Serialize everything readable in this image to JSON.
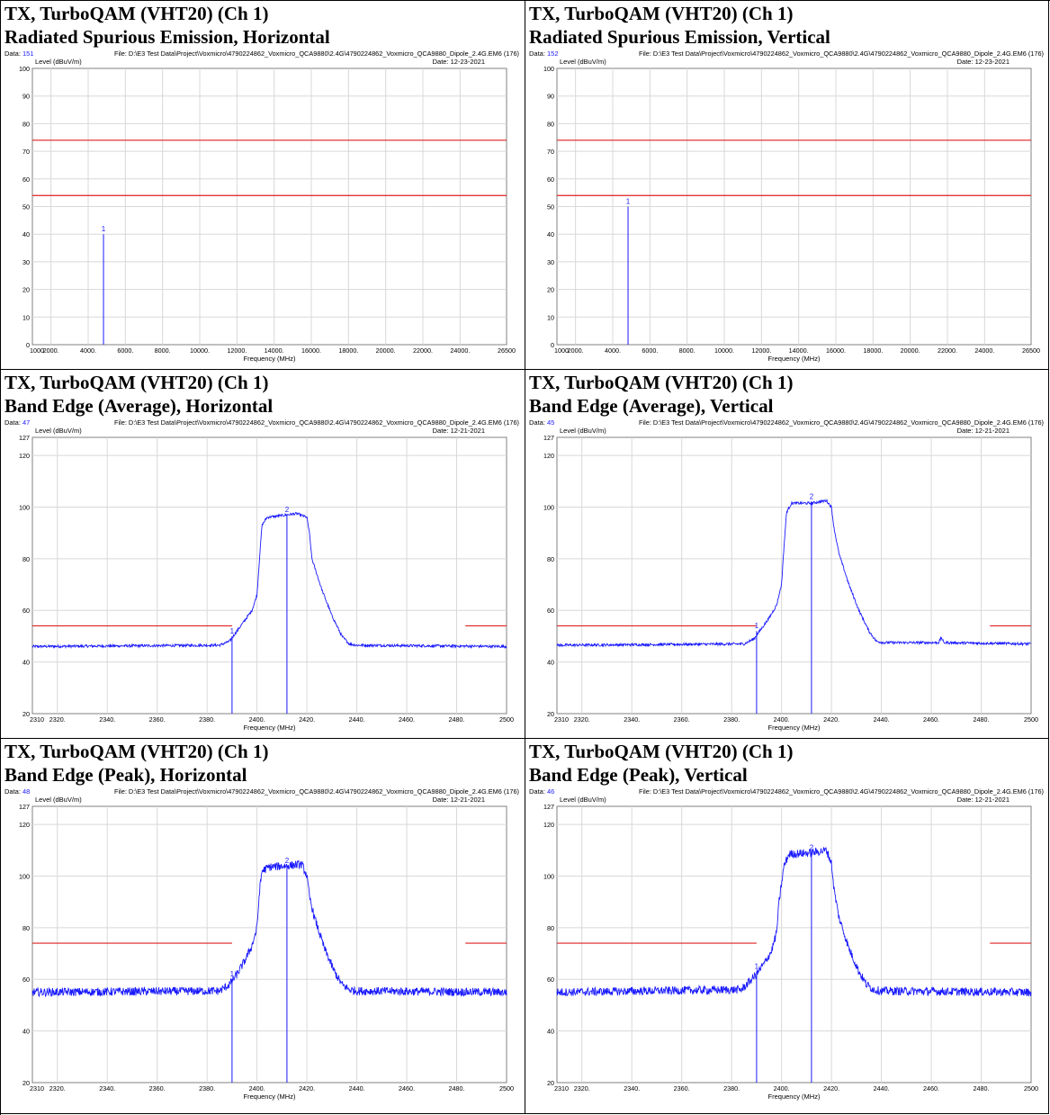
{
  "charts": [
    {
      "title": "TX, TurboQAM (VHT20) (Ch 1)",
      "subtitle": "Radiated Spurious Emission, Horizontal",
      "data_label": "Data:",
      "data_num": "151",
      "file": "File: D:\\E3 Test Data\\Project\\Voxmicro\\4790224862_Voxmicro_QCA9880\\2.4G\\4790224862_Voxmicro_QCA9880_Dipole_2.4G.EM6 (176)",
      "date": "Date: 12-23-2021",
      "ylabel": "Level (dBuV/m)",
      "xlabel": "Frequency (MHz)"
    },
    {
      "title": "TX, TurboQAM (VHT20) (Ch 1)",
      "subtitle": "Radiated Spurious Emission, Vertical",
      "data_label": "Data:",
      "data_num": "152",
      "file": "File: D:\\E3 Test Data\\Project\\Voxmicro\\4790224862_Voxmicro_QCA9880\\2.4G\\4790224862_Voxmicro_QCA9880_Dipole_2.4G.EM6 (176)",
      "date": "Date: 12-23-2021",
      "ylabel": "Level (dBuV/m)",
      "xlabel": "Frequency (MHz)"
    },
    {
      "title": "TX, TurboQAM (VHT20) (Ch 1)",
      "subtitle": "Band Edge (Average), Horizontal",
      "data_label": "Data:",
      "data_num": "47",
      "file": "File: D:\\E3 Test Data\\Project\\Voxmicro\\4790224862_Voxmicro_QCA9880\\2.4G\\4790224862_Voxmicro_QCA9880_Dipole_2.4G.EM6 (176)",
      "date": "Date: 12-21-2021",
      "ylabel": "Level (dBuV/m)",
      "xlabel": "Frequency (MHz)"
    },
    {
      "title": "TX, TurboQAM (VHT20) (Ch 1)",
      "subtitle": "Band Edge (Average), Vertical",
      "data_label": "Data:",
      "data_num": "45",
      "file": "File: D:\\E3 Test Data\\Project\\Voxmicro\\4790224862_Voxmicro_QCA9880\\2.4G\\4790224862_Voxmicro_QCA9880_Dipole_2.4G.EM6 (176)",
      "date": "Date: 12-21-2021",
      "ylabel": "Level (dBuV/m)",
      "xlabel": "Frequency (MHz)"
    },
    {
      "title": "TX, TurboQAM (VHT20) (Ch 1)",
      "subtitle": "Band Edge (Peak), Horizontal",
      "data_label": "Data:",
      "data_num": "48",
      "file": "File: D:\\E3 Test Data\\Project\\Voxmicro\\4790224862_Voxmicro_QCA9880\\2.4G\\4790224862_Voxmicro_QCA9880_Dipole_2.4G.EM6 (176)",
      "date": "Date: 12-21-2021",
      "ylabel": "Level (dBuV/m)",
      "xlabel": "Frequency (MHz)"
    },
    {
      "title": "TX, TurboQAM (VHT20) (Ch 1)",
      "subtitle": "Band Edge (Peak), Vertical",
      "data_label": "Data:",
      "data_num": "46",
      "file": "File: D:\\E3 Test Data\\Project\\Voxmicro\\4790224862_Voxmicro_QCA9880\\2.4G\\4790224862_Voxmicro_QCA9880_Dipole_2.4G.EM6 (176)",
      "date": "Date: 12-21-2021",
      "ylabel": "Level (dBuV/m)",
      "xlabel": "Frequency (MHz)"
    }
  ],
  "colors": {
    "trace": "#1a1aff",
    "limit": "#e02020",
    "grid": "#d8d8d8",
    "data_num": "#1a1aff"
  },
  "chart_data": [
    {
      "type": "line",
      "xlim": [
        1000,
        26500
      ],
      "ylim": [
        0,
        100
      ],
      "xticks": [
        1000,
        2000,
        4000,
        6000,
        8000,
        10000,
        12000,
        14000,
        16000,
        18000,
        20000,
        22000,
        24000,
        26500
      ],
      "xtick_labels": [
        "1000",
        "2000.",
        "4000.",
        "6000.",
        "8000.",
        "10000.",
        "12000.",
        "14000.",
        "16000.",
        "18000.",
        "20000.",
        "22000.",
        "24000.",
        "26500"
      ],
      "yticks": [
        0,
        10,
        20,
        30,
        40,
        50,
        60,
        70,
        80,
        90,
        100
      ],
      "limits": [
        {
          "y": 74,
          "x": [
            1000,
            26500
          ]
        },
        {
          "y": 54,
          "x": [
            1000,
            26500
          ]
        }
      ],
      "markers": [
        {
          "label": "1",
          "x": 4824,
          "y": 40
        }
      ]
    },
    {
      "type": "line",
      "xlim": [
        1000,
        26500
      ],
      "ylim": [
        0,
        100
      ],
      "xticks": [
        1000,
        2000,
        4000,
        6000,
        8000,
        10000,
        12000,
        14000,
        16000,
        18000,
        20000,
        22000,
        24000,
        26500
      ],
      "xtick_labels": [
        "1000",
        "2000.",
        "4000.",
        "6000.",
        "8000.",
        "10000.",
        "12000.",
        "14000.",
        "16000.",
        "18000.",
        "20000.",
        "22000.",
        "24000.",
        "26500"
      ],
      "yticks": [
        0,
        10,
        20,
        30,
        40,
        50,
        60,
        70,
        80,
        90,
        100
      ],
      "limits": [
        {
          "y": 74,
          "x": [
            1000,
            26500
          ]
        },
        {
          "y": 54,
          "x": [
            1000,
            26500
          ]
        }
      ],
      "markers": [
        {
          "label": "1",
          "x": 4824,
          "y": 50
        }
      ]
    },
    {
      "type": "line",
      "xlim": [
        2310,
        2500
      ],
      "ylim": [
        20,
        127
      ],
      "xticks": [
        2310,
        2320,
        2340,
        2360,
        2380,
        2400,
        2420,
        2440,
        2460,
        2480,
        2500
      ],
      "xtick_labels": [
        "2310",
        "2320.",
        "2340.",
        "2360.",
        "2380.",
        "2400.",
        "2420.",
        "2440.",
        "2460.",
        "2480.",
        "2500"
      ],
      "yticks": [
        20,
        40,
        60,
        80,
        100,
        120,
        127
      ],
      "limits": [
        {
          "y": 54,
          "x": [
            2310,
            2390
          ]
        },
        {
          "y": 54,
          "x": [
            2483.5,
            2500
          ]
        }
      ],
      "series_points": [
        [
          2310,
          46
        ],
        [
          2385,
          46.5
        ],
        [
          2389,
          48
        ],
        [
          2392,
          52
        ],
        [
          2395,
          56
        ],
        [
          2398,
          60
        ],
        [
          2400,
          66
        ],
        [
          2401,
          80
        ],
        [
          2402,
          93
        ],
        [
          2404,
          96
        ],
        [
          2408,
          96.5
        ],
        [
          2412,
          97
        ],
        [
          2416,
          97.5
        ],
        [
          2420,
          96
        ],
        [
          2421,
          90
        ],
        [
          2422,
          80
        ],
        [
          2426,
          68
        ],
        [
          2430,
          58
        ],
        [
          2434,
          50
        ],
        [
          2437,
          47
        ],
        [
          2440,
          46.5
        ],
        [
          2500,
          46
        ]
      ],
      "noise": 0.5,
      "markers": [
        {
          "label": "1",
          "x": 2390,
          "y": 50
        },
        {
          "label": "2",
          "x": 2412,
          "y": 97
        }
      ]
    },
    {
      "type": "line",
      "xlim": [
        2310,
        2500
      ],
      "ylim": [
        20,
        127
      ],
      "xticks": [
        2310,
        2320,
        2340,
        2360,
        2380,
        2400,
        2420,
        2440,
        2460,
        2480,
        2500
      ],
      "xtick_labels": [
        "2310",
        "2320.",
        "2340.",
        "2360.",
        "2380.",
        "2400.",
        "2420.",
        "2440.",
        "2460.",
        "2480.",
        "2500"
      ],
      "yticks": [
        20,
        40,
        60,
        80,
        100,
        120,
        127
      ],
      "limits": [
        {
          "y": 54,
          "x": [
            2310,
            2390
          ]
        },
        {
          "y": 54,
          "x": [
            2483.5,
            2500
          ]
        }
      ],
      "series_points": [
        [
          2310,
          46.5
        ],
        [
          2385,
          47
        ],
        [
          2389,
          49
        ],
        [
          2392,
          53
        ],
        [
          2395,
          57
        ],
        [
          2398,
          62
        ],
        [
          2400,
          70
        ],
        [
          2401,
          85
        ],
        [
          2402,
          98
        ],
        [
          2404,
          101.5
        ],
        [
          2412,
          101.5
        ],
        [
          2418,
          102.5
        ],
        [
          2420,
          100
        ],
        [
          2421,
          92
        ],
        [
          2423,
          82
        ],
        [
          2427,
          70
        ],
        [
          2431,
          60
        ],
        [
          2435,
          52
        ],
        [
          2438,
          48
        ],
        [
          2441,
          47.5
        ],
        [
          2463,
          47.5
        ],
        [
          2464,
          49.5
        ],
        [
          2465,
          47.5
        ],
        [
          2500,
          47
        ]
      ],
      "noise": 0.5,
      "markers": [
        {
          "label": "1",
          "x": 2390,
          "y": 52
        },
        {
          "label": "2",
          "x": 2412,
          "y": 102
        }
      ]
    },
    {
      "type": "line",
      "xlim": [
        2310,
        2500
      ],
      "ylim": [
        20,
        127
      ],
      "xticks": [
        2310,
        2320,
        2340,
        2360,
        2380,
        2400,
        2420,
        2440,
        2460,
        2480,
        2500
      ],
      "xtick_labels": [
        "2310",
        "2320.",
        "2340.",
        "2360.",
        "2380.",
        "2400.",
        "2420.",
        "2440.",
        "2460.",
        "2480.",
        "2500"
      ],
      "yticks": [
        20,
        40,
        60,
        80,
        100,
        120,
        127
      ],
      "limits": [
        {
          "y": 74,
          "x": [
            2310,
            2390
          ]
        },
        {
          "y": 74,
          "x": [
            2483.5,
            2500
          ]
        }
      ],
      "series_points": [
        [
          2310,
          55
        ],
        [
          2385,
          55.5
        ],
        [
          2389,
          58
        ],
        [
          2392,
          62
        ],
        [
          2395,
          67
        ],
        [
          2398,
          73
        ],
        [
          2400,
          80
        ],
        [
          2401,
          94
        ],
        [
          2402,
          102
        ],
        [
          2405,
          103.5
        ],
        [
          2412,
          104
        ],
        [
          2418,
          104.5
        ],
        [
          2420,
          100
        ],
        [
          2421,
          92
        ],
        [
          2423,
          84
        ],
        [
          2427,
          72
        ],
        [
          2431,
          63
        ],
        [
          2434,
          58
        ],
        [
          2437,
          56
        ],
        [
          2440,
          55.5
        ],
        [
          2500,
          55
        ]
      ],
      "noise": 1.6,
      "markers": [
        {
          "label": "1",
          "x": 2390,
          "y": 60
        },
        {
          "label": "2",
          "x": 2412,
          "y": 104
        }
      ]
    },
    {
      "type": "line",
      "xlim": [
        2310,
        2500
      ],
      "ylim": [
        20,
        127
      ],
      "xticks": [
        2310,
        2320,
        2340,
        2360,
        2380,
        2400,
        2420,
        2440,
        2460,
        2480,
        2500
      ],
      "xtick_labels": [
        "2310",
        "2320.",
        "2340.",
        "2360.",
        "2380.",
        "2400.",
        "2420.",
        "2440.",
        "2460.",
        "2480.",
        "2500"
      ],
      "yticks": [
        20,
        40,
        60,
        80,
        100,
        120,
        127
      ],
      "limits": [
        {
          "y": 74,
          "x": [
            2310,
            2390
          ]
        },
        {
          "y": 74,
          "x": [
            2483.5,
            2500
          ]
        }
      ],
      "series_points": [
        [
          2310,
          55
        ],
        [
          2384,
          56
        ],
        [
          2387,
          59
        ],
        [
          2390,
          62
        ],
        [
          2393,
          66
        ],
        [
          2396,
          71
        ],
        [
          2398,
          78
        ],
        [
          2399,
          90
        ],
        [
          2401,
          104
        ],
        [
          2403,
          108.5
        ],
        [
          2412,
          109
        ],
        [
          2418,
          110
        ],
        [
          2420,
          105
        ],
        [
          2421,
          95
        ],
        [
          2423,
          84
        ],
        [
          2427,
          72
        ],
        [
          2431,
          63
        ],
        [
          2434,
          58
        ],
        [
          2437,
          56
        ],
        [
          2440,
          55.5
        ],
        [
          2500,
          55
        ]
      ],
      "noise": 1.6,
      "markers": [
        {
          "label": "1",
          "x": 2390,
          "y": 63
        },
        {
          "label": "2",
          "x": 2412,
          "y": 109
        }
      ]
    }
  ]
}
